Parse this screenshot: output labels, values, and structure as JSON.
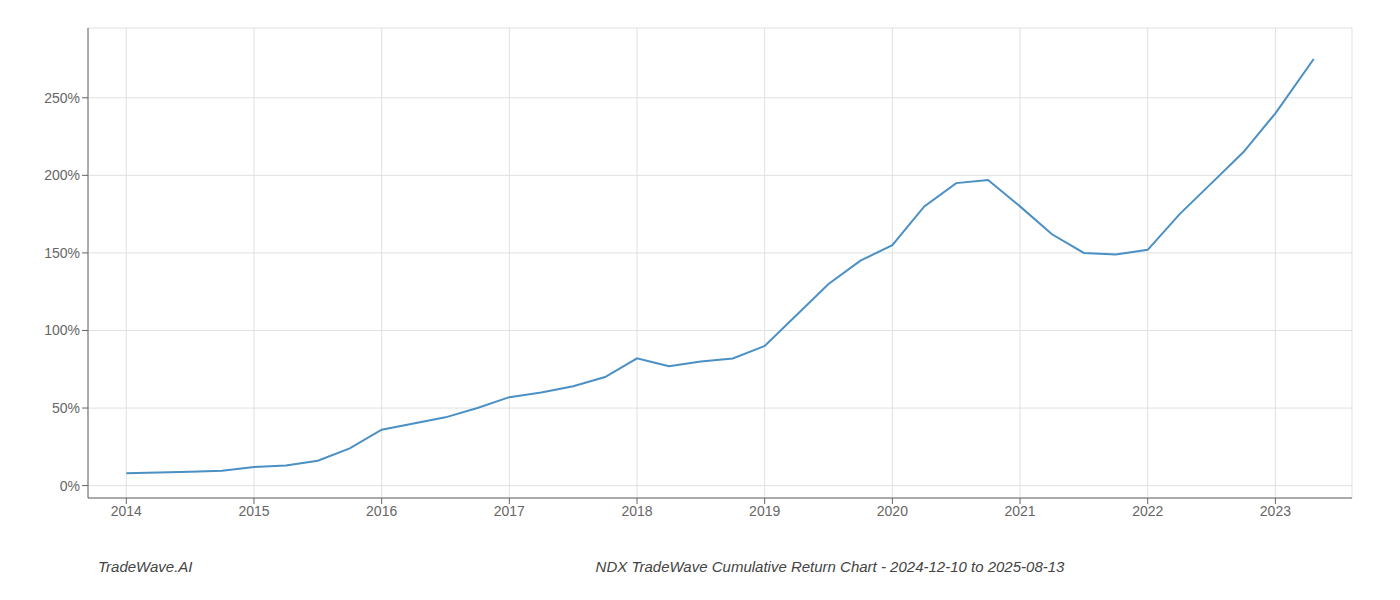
{
  "chart_data": {
    "type": "line",
    "title": "NDX TradeWave Cumulative Return Chart - 2024-12-10 to 2025-08-13",
    "annotations": [
      "TradeWave.AI"
    ],
    "x": [
      2014.0,
      2014.25,
      2014.5,
      2014.75,
      2015.0,
      2015.25,
      2015.5,
      2015.75,
      2016.0,
      2016.25,
      2016.5,
      2016.75,
      2017.0,
      2017.25,
      2017.5,
      2017.75,
      2018.0,
      2018.1,
      2018.25,
      2018.5,
      2018.75,
      2019.0,
      2019.25,
      2019.5,
      2019.75,
      2020.0,
      2020.1,
      2020.25,
      2020.5,
      2020.75,
      2021.0,
      2021.25,
      2021.5,
      2021.75,
      2022.0,
      2022.25,
      2022.5,
      2022.75,
      2023.0,
      2023.3
    ],
    "values": [
      8,
      8.5,
      9,
      9.5,
      12,
      13,
      16,
      24,
      36,
      40,
      44,
      50,
      57,
      60,
      64,
      70,
      82,
      80,
      77,
      80,
      82,
      90,
      110,
      130,
      145,
      155,
      165,
      180,
      195,
      197,
      180,
      162,
      150,
      149,
      152,
      175,
      195,
      215,
      240,
      275
    ],
    "color": "#4a90c4",
    "xlim": [
      2013.7,
      2023.6
    ],
    "xticks": [
      2014,
      2015,
      2016,
      2017,
      2018,
      2019,
      2020,
      2021,
      2022,
      2023
    ],
    "ylim": [
      -8,
      295
    ],
    "yticks": [
      {
        "value": 0,
        "label": "0%"
      },
      {
        "value": 50,
        "label": "50%"
      },
      {
        "value": 100,
        "label": "100%"
      },
      {
        "value": 150,
        "label": "150%"
      },
      {
        "value": 200,
        "label": "200%"
      },
      {
        "value": 250,
        "label": "250%"
      }
    ],
    "grid": true
  }
}
